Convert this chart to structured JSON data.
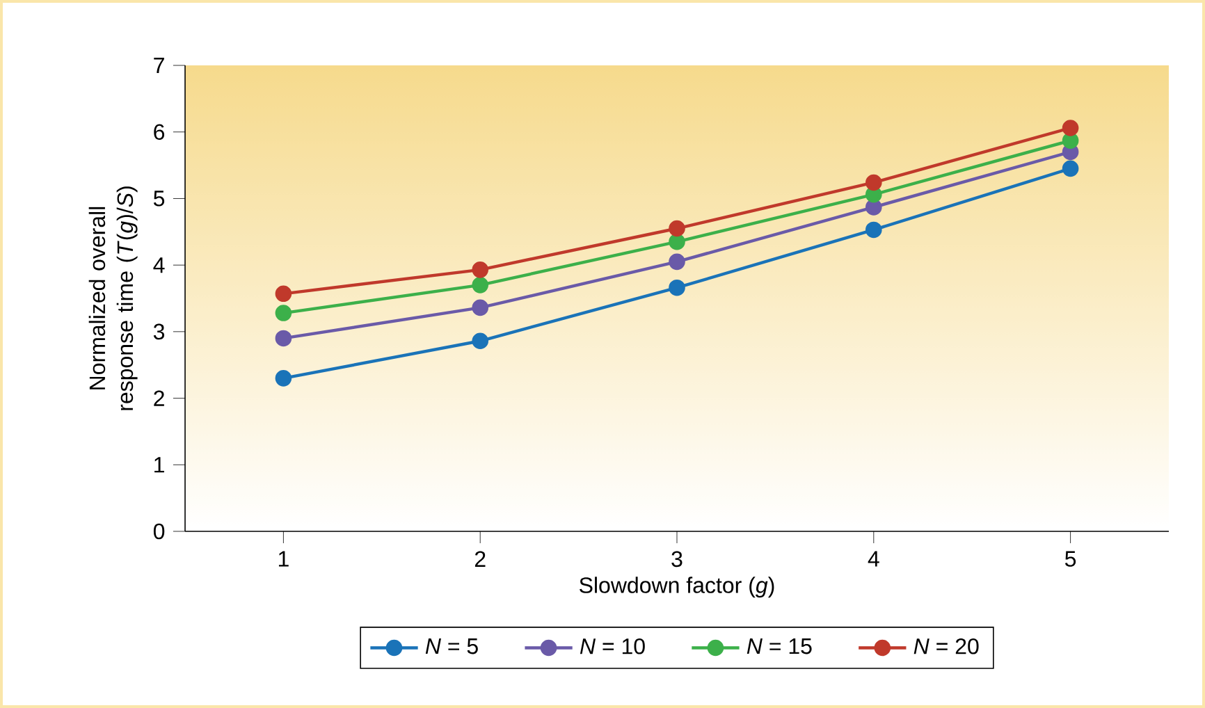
{
  "chart_data": {
    "type": "line",
    "xlabel": "Slowdown factor (*g*)",
    "ylabel": "Normalized overall response time (*T*(*g*)/*S*)",
    "x": [
      1,
      2,
      3,
      4,
      5
    ],
    "xlim": [
      0.5,
      5.5
    ],
    "xticks": [
      1,
      2,
      3,
      4,
      5
    ],
    "ylim": [
      0,
      7
    ],
    "yticks": [
      0,
      1,
      2,
      3,
      4,
      5,
      6,
      7
    ],
    "grid": false,
    "legend": "bottom",
    "marker": "circle",
    "line_style": "solid",
    "series": [
      {
        "name": "*N* = 5",
        "color": "#1a73b8",
        "values": [
          2.3,
          2.86,
          3.66,
          4.53,
          5.45
        ]
      },
      {
        "name": "*N* = 10",
        "color": "#6a5aa8",
        "values": [
          2.9,
          3.36,
          4.05,
          4.87,
          5.7
        ]
      },
      {
        "name": "*N* = 15",
        "color": "#3cb04a",
        "values": [
          3.28,
          3.7,
          4.35,
          5.06,
          5.87
        ]
      },
      {
        "name": "*N* = 20",
        "color": "#c0392b",
        "values": [
          3.57,
          3.93,
          4.55,
          5.24,
          6.06
        ]
      }
    ]
  }
}
